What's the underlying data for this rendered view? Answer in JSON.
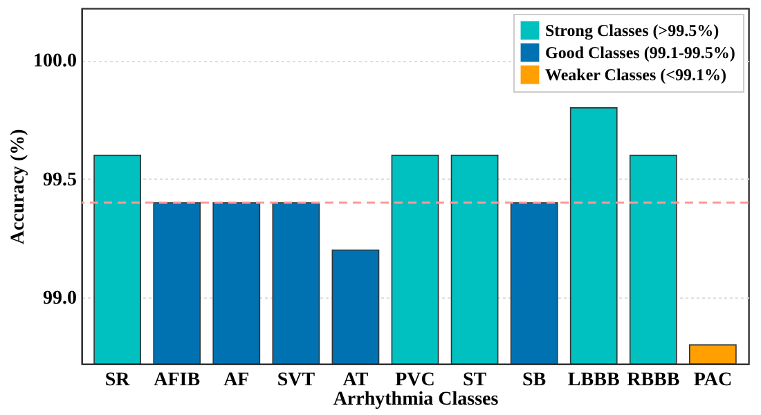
{
  "chart_data": {
    "type": "bar",
    "xlabel": "Arrhythmia Classes",
    "ylabel": "Accuracy (%)",
    "categories": [
      "SR",
      "AFIB",
      "AF",
      "SVT",
      "AT",
      "PVC",
      "ST",
      "SB",
      "LBBB",
      "RBBB",
      "PAC"
    ],
    "series": [
      {
        "name": "Strong Classes (>99.5%)",
        "color": "#00c0c0",
        "values": [
          99.6,
          null,
          null,
          null,
          null,
          99.6,
          99.6,
          null,
          99.8,
          99.6,
          null
        ]
      },
      {
        "name": "Good Classes (99.1-99.5%)",
        "color": "#0072b2",
        "values": [
          null,
          99.4,
          99.4,
          99.4,
          99.2,
          null,
          null,
          99.4,
          null,
          null,
          null
        ]
      },
      {
        "name": "Weaker Classes (<99.1%)",
        "color": "#ff9f00",
        "values": [
          null,
          null,
          null,
          null,
          null,
          null,
          null,
          null,
          null,
          null,
          98.8
        ]
      }
    ],
    "ylim": [
      98.72,
      100.22
    ],
    "yticks": [
      {
        "value": 99.0,
        "label": "99.0"
      },
      {
        "value": 99.5,
        "label": "99.5"
      },
      {
        "value": 100.0,
        "label": "100.0"
      }
    ],
    "ref_lines": [
      {
        "axis": "y",
        "value": 99.4,
        "color": "#ff9999",
        "line_style": "dashed"
      }
    ],
    "grid": "y",
    "legend": "top right"
  }
}
